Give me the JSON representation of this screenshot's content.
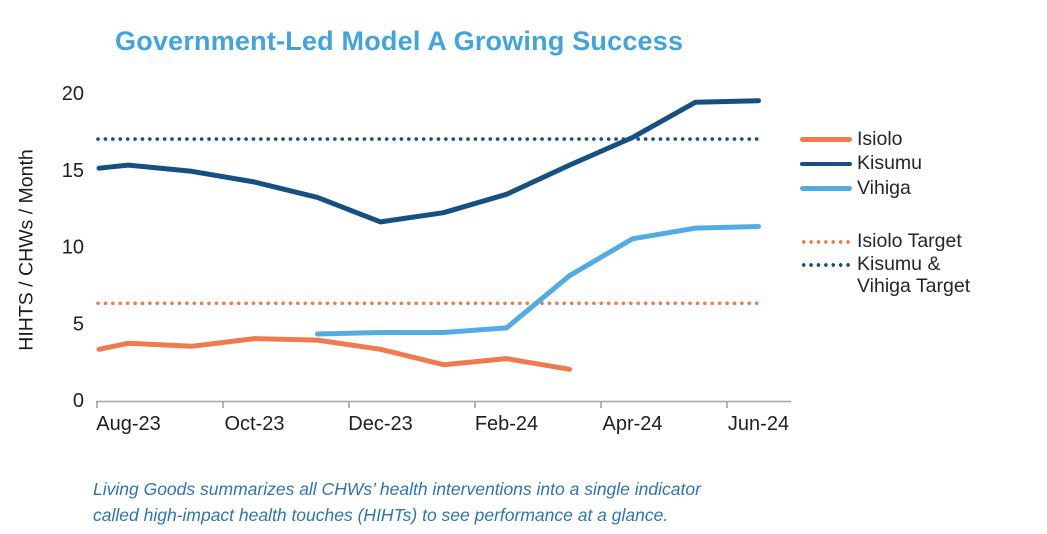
{
  "title": {
    "text": "Government-Led Model A Growing Success",
    "color": "#41A4DC"
  },
  "chart_data": {
    "type": "line",
    "title": "Government-Led Model A Growing Success",
    "xlabel": "",
    "ylabel": "HIHTS / CHWs / Month",
    "x": [
      "Aug-23",
      "Sep-23",
      "Oct-23",
      "Nov-23",
      "Dec-23",
      "Jan-24",
      "Feb-24",
      "Mar-24",
      "Apr-24",
      "May-24",
      "Jun-24"
    ],
    "xtick_labels": [
      "Aug-23",
      "Oct-23",
      "Dec-23",
      "Feb-24",
      "Apr-24",
      "Jun-24"
    ],
    "ylim": [
      0,
      20
    ],
    "yticks": [
      0,
      5,
      10,
      15,
      20
    ],
    "grid": false,
    "legend_position": "right",
    "series": [
      {
        "name": "Isiolo",
        "color": "#EF7B4D",
        "style": "solid",
        "edge_start": 3.3,
        "values": [
          3.7,
          3.5,
          4.0,
          3.9,
          3.3,
          2.3,
          2.7,
          2.0,
          null,
          null,
          null
        ]
      },
      {
        "name": "Kisumu",
        "color": "#155083",
        "style": "solid",
        "edge_start": 15.1,
        "values": [
          15.3,
          14.9,
          14.2,
          13.2,
          11.6,
          12.2,
          13.4,
          15.3,
          17.1,
          19.4,
          19.5
        ]
      },
      {
        "name": "Vihiga",
        "color": "#52ACE3",
        "style": "solid",
        "edge_start": null,
        "values": [
          null,
          null,
          null,
          4.3,
          4.4,
          4.4,
          4.7,
          8.1,
          10.5,
          11.2,
          11.3
        ]
      }
    ],
    "targets": [
      {
        "name": "Isiolo Target",
        "color": "#EF7B4D",
        "style": "dotted",
        "value": 6.3
      },
      {
        "name": "Kisumu & Vihiga Target",
        "color": "#155083",
        "style": "dotted",
        "value": 17
      }
    ],
    "axis_color": "#A6A6A6",
    "tick_label_color": "#1F1F1F"
  },
  "legend": {
    "items": [
      {
        "label": "Isiolo",
        "color": "#EF7B4D"
      },
      {
        "label": "Kisumu",
        "color": "#155083"
      },
      {
        "label": "Vihiga",
        "color": "#52ACE3"
      }
    ],
    "targets": [
      {
        "label": "Isiolo Target",
        "color": "#EF7B4D"
      },
      {
        "line1": "Kisumu &",
        "line2": "Vihiga Target",
        "color": "#155083"
      }
    ]
  },
  "footer": {
    "color": "#2E74B5",
    "line1": "Living Goods summarizes all CHWs’ health interventions into a single indicator",
    "line2": "called high-impact health touches (HIHTs) to see performance at a glance."
  }
}
